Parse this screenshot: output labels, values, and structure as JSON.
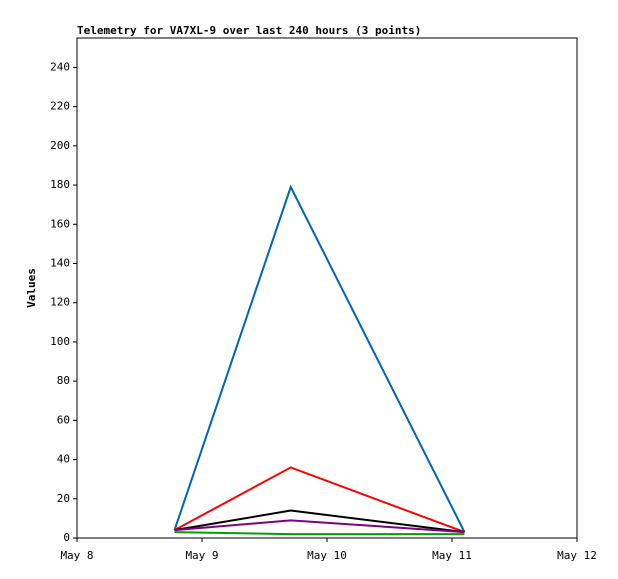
{
  "chart_data": {
    "type": "line",
    "title": "Telemetry for VA7XL-9 over last 240 hours (3 points)",
    "y_label": "Values",
    "x": [
      8.78,
      9.71,
      11.1
    ],
    "xlim": [
      8,
      12
    ],
    "xticks": [
      {
        "value": 8,
        "label": "May 8"
      },
      {
        "value": 9,
        "label": "May 9"
      },
      {
        "value": 10,
        "label": "May 10"
      },
      {
        "value": 11,
        "label": "May 11"
      },
      {
        "value": 12,
        "label": "May 12"
      }
    ],
    "ylim": [
      0,
      255
    ],
    "yticks": [
      0,
      20,
      40,
      60,
      80,
      100,
      120,
      140,
      160,
      180,
      200,
      220,
      240
    ],
    "series": [
      {
        "color": "#0066b3",
        "values": [
          4,
          179,
          3
        ]
      },
      {
        "color": "#ff0000",
        "values": [
          4,
          36,
          3
        ]
      },
      {
        "color": "#000000",
        "values": [
          4,
          14,
          3
        ]
      },
      {
        "color": "#800080",
        "values": [
          4,
          9,
          3
        ]
      },
      {
        "color": "#00a000",
        "values": [
          3,
          2,
          2
        ]
      }
    ]
  }
}
